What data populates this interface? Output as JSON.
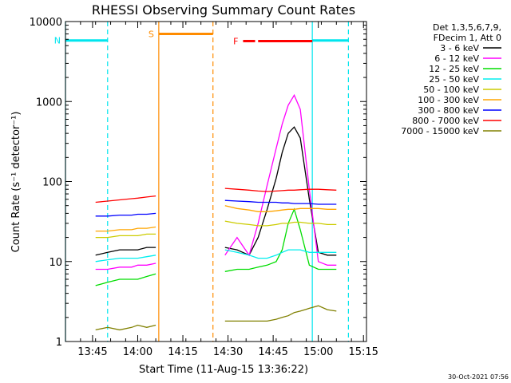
{
  "chart_data": {
    "type": "line",
    "title": "RHESSI Observing Summary Count Rates",
    "xlabel": "Start Time (11-Aug-15 13:36:22)",
    "ylabel": "Count Rate (s⁻¹ detector⁻¹)",
    "y_scale": "log",
    "ylim": [
      1,
      10000
    ],
    "xlim": [
      "13:36",
      "15:16"
    ],
    "x_ticks": [
      "13:45",
      "14:00",
      "14:15",
      "14:30",
      "14:45",
      "15:00",
      "15:15"
    ],
    "y_ticks": [
      "1",
      "10",
      "100",
      "1000",
      "10000"
    ],
    "legend": {
      "position": "right",
      "header": [
        "Det 1,3,5,6,7,9,",
        "FDecim 1, Att 0"
      ]
    },
    "timestamp": "30-Oct-2021 07:56",
    "flags": [
      {
        "label": "N",
        "color": "#00e5ee",
        "level": 5800,
        "segments": [
          [
            "13:36",
            "13:50"
          ],
          [
            "14:58",
            "15:10"
          ]
        ]
      },
      {
        "label": "S",
        "color": "#ff8c00",
        "level": 7000,
        "segments": [
          [
            "14:07",
            "14:25"
          ]
        ]
      },
      {
        "label": "F",
        "color": "#ff0000",
        "level": 5700,
        "segments": [
          [
            "14:35",
            "14:39"
          ],
          [
            "14:40",
            "14:58"
          ]
        ]
      }
    ],
    "vlines": [
      {
        "color": "#00e5ee",
        "style": "solid",
        "x": "13:36"
      },
      {
        "color": "#00e5ee",
        "style": "dashed",
        "x": "13:50"
      },
      {
        "color": "#00e5ee",
        "style": "solid",
        "x": "14:58"
      },
      {
        "color": "#00e5ee",
        "style": "dashed",
        "x": "15:10"
      },
      {
        "color": "#ff8c00",
        "style": "solid",
        "x": "14:07"
      },
      {
        "color": "#ff8c00",
        "style": "dashed",
        "x": "14:25"
      }
    ],
    "x": [
      "13:46",
      "13:50",
      "13:54",
      "13:58",
      "14:00",
      "14:03",
      "14:06",
      "14:29",
      "14:33",
      "14:37",
      "14:40",
      "14:43",
      "14:46",
      "14:48",
      "14:50",
      "14:52",
      "14:54",
      "14:57",
      "15:00",
      "15:03",
      "15:06"
    ],
    "series": [
      {
        "name": "3 - 6 keV",
        "color": "#000000",
        "values": [
          12,
          13,
          14,
          14,
          14,
          15,
          15,
          15,
          14,
          12,
          20,
          45,
          110,
          230,
          400,
          480,
          350,
          60,
          13,
          12,
          12
        ]
      },
      {
        "name": "6 - 12 keV",
        "color": "#ff00ff",
        "values": [
          8,
          8,
          8.5,
          8.5,
          9,
          9,
          9.5,
          12,
          20,
          12,
          30,
          90,
          260,
          520,
          900,
          1200,
          800,
          80,
          10,
          9,
          9
        ]
      },
      {
        "name": "12 - 25 keV",
        "color": "#00dd00",
        "values": [
          5,
          5.5,
          6,
          6,
          6,
          6.5,
          7,
          7.5,
          8,
          8,
          8.5,
          9,
          10,
          14,
          30,
          45,
          25,
          9,
          8,
          8,
          8
        ]
      },
      {
        "name": "25 - 50 keV",
        "color": "#00eeee",
        "values": [
          10,
          10.5,
          11,
          11,
          11,
          11.5,
          12,
          14,
          13,
          12,
          11,
          11,
          12,
          13,
          14,
          14,
          14,
          13,
          13,
          13,
          13
        ]
      },
      {
        "name": "50 - 100 keV",
        "color": "#cccc00",
        "values": [
          20,
          20,
          21,
          21,
          21,
          22,
          22,
          32,
          30,
          29,
          28,
          28,
          29,
          30,
          30,
          31,
          31,
          30,
          30,
          29,
          29
        ]
      },
      {
        "name": "100 - 300 keV",
        "color": "#ffa500",
        "values": [
          24,
          24,
          25,
          25,
          26,
          26,
          27,
          50,
          46,
          44,
          42,
          42,
          43,
          44,
          45,
          45,
          46,
          46,
          46,
          45,
          45
        ]
      },
      {
        "name": "300 - 800 keV",
        "color": "#0000ff",
        "values": [
          37,
          37,
          38,
          38,
          39,
          39,
          40,
          58,
          57,
          56,
          55,
          55,
          55,
          54,
          54,
          53,
          53,
          53,
          52,
          52,
          52
        ]
      },
      {
        "name": "800 - 7000 keV",
        "color": "#ff0000",
        "values": [
          55,
          57,
          59,
          61,
          62,
          64,
          66,
          82,
          80,
          78,
          76,
          75,
          76,
          77,
          78,
          78,
          79,
          80,
          80,
          79,
          78
        ]
      },
      {
        "name": "7000 - 15000 keV",
        "color": "#808000",
        "values": [
          1.4,
          1.5,
          1.4,
          1.5,
          1.6,
          1.5,
          1.6,
          1.8,
          1.8,
          1.8,
          1.8,
          1.8,
          1.9,
          2.0,
          2.1,
          2.3,
          2.4,
          2.6,
          2.8,
          2.5,
          2.4
        ]
      }
    ]
  }
}
